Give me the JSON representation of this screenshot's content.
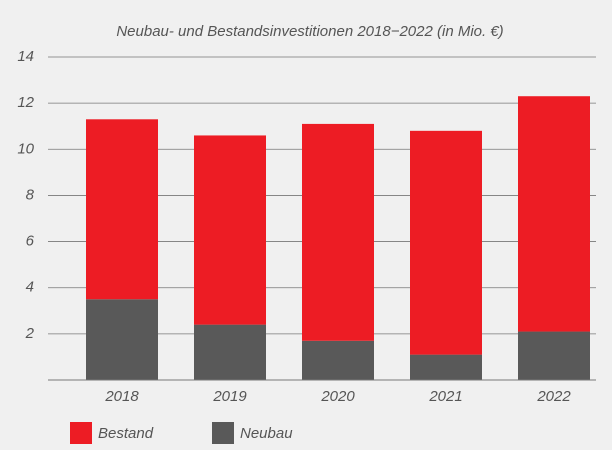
{
  "chart_data": {
    "type": "stacked_bar",
    "title": "Neubau- und Bestandsinvestitionen 2018−2022 (in Mio. €)",
    "categories": [
      "2018",
      "2019",
      "2020",
      "2021",
      "2022"
    ],
    "series": [
      {
        "name": "Bestand",
        "color": "#ed1c24",
        "values": [
          7.8,
          8.2,
          9.4,
          9.7,
          10.2
        ]
      },
      {
        "name": "Neubau",
        "color": "#595959",
        "values": [
          3.5,
          2.4,
          1.7,
          1.1,
          2.1
        ]
      }
    ],
    "ylim": [
      0,
      14
    ],
    "yticks": [
      2,
      4,
      6,
      8,
      10,
      12,
      14
    ],
    "grid": true
  }
}
